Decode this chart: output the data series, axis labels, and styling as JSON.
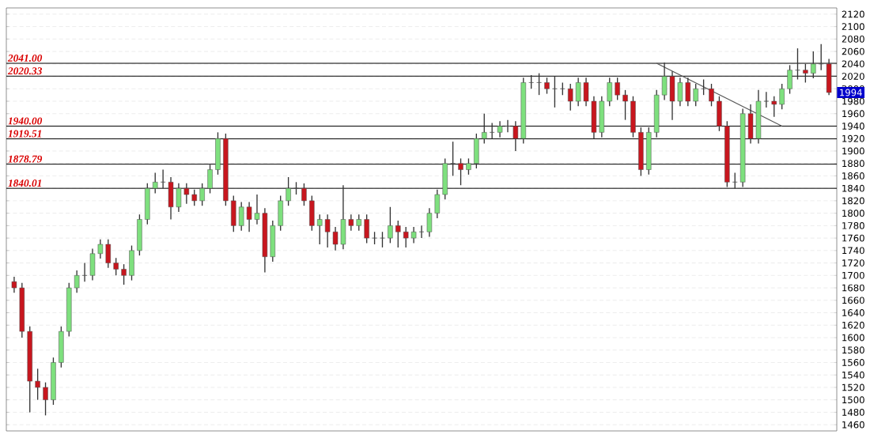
{
  "chart_data": {
    "type": "candlestick",
    "categories": [
      null,
      null,
      null,
      null,
      null,
      null,
      null,
      null,
      null,
      null,
      null,
      null,
      null,
      null,
      null,
      null,
      null,
      null,
      null,
      null,
      null,
      null,
      null,
      null,
      null,
      null,
      null,
      null,
      null,
      null,
      null,
      null,
      null,
      null,
      null,
      null,
      null,
      null,
      null,
      null,
      null,
      null,
      null,
      null,
      null,
      null,
      null,
      null,
      null,
      null,
      null,
      null,
      null,
      null,
      null,
      null,
      null,
      null,
      null,
      null,
      null,
      null,
      null,
      null,
      null,
      null,
      null,
      null,
      null,
      null,
      null,
      null,
      null,
      null,
      null,
      null,
      null,
      null,
      null,
      null,
      null,
      null,
      null,
      null,
      null,
      null,
      null,
      null,
      null,
      null,
      null,
      null,
      null,
      null,
      null,
      null,
      null,
      null,
      null,
      null,
      null,
      null,
      null,
      null,
      null
    ],
    "ohlc": [
      [
        1690,
        1698,
        1672,
        1680
      ],
      [
        1680,
        1688,
        1600,
        1610
      ],
      [
        1610,
        1618,
        1480,
        1530
      ],
      [
        1530,
        1550,
        1500,
        1520
      ],
      [
        1520,
        1528,
        1475,
        1500
      ],
      [
        1500,
        1568,
        1492,
        1560
      ],
      [
        1560,
        1618,
        1552,
        1610
      ],
      [
        1610,
        1688,
        1602,
        1680
      ],
      [
        1680,
        1708,
        1672,
        1700
      ],
      [
        1700,
        1720,
        1690,
        1700
      ],
      [
        1700,
        1743,
        1692,
        1735
      ],
      [
        1735,
        1758,
        1727,
        1750
      ],
      [
        1750,
        1758,
        1712,
        1720
      ],
      [
        1720,
        1728,
        1700,
        1710
      ],
      [
        1710,
        1718,
        1685,
        1700
      ],
      [
        1700,
        1748,
        1692,
        1740
      ],
      [
        1740,
        1798,
        1732,
        1790
      ],
      [
        1790,
        1848,
        1782,
        1840
      ],
      [
        1840,
        1865,
        1832,
        1850
      ],
      [
        1850,
        1870,
        1840,
        1850
      ],
      [
        1850,
        1858,
        1790,
        1810
      ],
      [
        1810,
        1848,
        1802,
        1840
      ],
      [
        1840,
        1848,
        1815,
        1830
      ],
      [
        1830,
        1838,
        1812,
        1820
      ],
      [
        1820,
        1848,
        1812,
        1840
      ],
      [
        1840,
        1878,
        1832,
        1870
      ],
      [
        1870,
        1930,
        1862,
        1920
      ],
      [
        1920,
        1928,
        1812,
        1820
      ],
      [
        1820,
        1828,
        1770,
        1780
      ],
      [
        1780,
        1818,
        1772,
        1810
      ],
      [
        1810,
        1818,
        1770,
        1790
      ],
      [
        1790,
        1830,
        1782,
        1800
      ],
      [
        1800,
        1808,
        1705,
        1730
      ],
      [
        1730,
        1788,
        1722,
        1780
      ],
      [
        1780,
        1828,
        1772,
        1820
      ],
      [
        1820,
        1858,
        1812,
        1840
      ],
      [
        1840,
        1850,
        1830,
        1840
      ],
      [
        1840,
        1848,
        1812,
        1820
      ],
      [
        1820,
        1828,
        1772,
        1780
      ],
      [
        1780,
        1798,
        1750,
        1790
      ],
      [
        1790,
        1798,
        1745,
        1770
      ],
      [
        1770,
        1778,
        1740,
        1750
      ],
      [
        1750,
        1845,
        1742,
        1790
      ],
      [
        1790,
        1798,
        1772,
        1780
      ],
      [
        1780,
        1798,
        1772,
        1790
      ],
      [
        1790,
        1798,
        1752,
        1760
      ],
      [
        1760,
        1770,
        1750,
        1760
      ],
      [
        1760,
        1770,
        1745,
        1760
      ],
      [
        1760,
        1810,
        1752,
        1780
      ],
      [
        1780,
        1788,
        1745,
        1770
      ],
      [
        1770,
        1778,
        1745,
        1760
      ],
      [
        1760,
        1778,
        1752,
        1770
      ],
      [
        1770,
        1780,
        1760,
        1770
      ],
      [
        1770,
        1808,
        1762,
        1800
      ],
      [
        1800,
        1838,
        1792,
        1830
      ],
      [
        1830,
        1888,
        1822,
        1880
      ],
      [
        1880,
        1915,
        1860,
        1880
      ],
      [
        1880,
        1888,
        1845,
        1870
      ],
      [
        1870,
        1888,
        1862,
        1880
      ],
      [
        1880,
        1928,
        1872,
        1920
      ],
      [
        1920,
        1960,
        1912,
        1930
      ],
      [
        1930,
        1945,
        1920,
        1930
      ],
      [
        1930,
        1948,
        1922,
        1940
      ],
      [
        1940,
        1950,
        1930,
        1940
      ],
      [
        1940,
        1948,
        1900,
        1920
      ],
      [
        1920,
        2018,
        1912,
        2010
      ],
      [
        2010,
        2022,
        2000,
        2010
      ],
      [
        2010,
        2025,
        1990,
        2010
      ],
      [
        2010,
        2018,
        1992,
        2000
      ],
      [
        2000,
        2020,
        1970,
        2000
      ],
      [
        2000,
        2010,
        1990,
        2000
      ],
      [
        2000,
        2008,
        1965,
        1980
      ],
      [
        1980,
        2018,
        1972,
        2010
      ],
      [
        2010,
        2018,
        1972,
        1980
      ],
      [
        1980,
        1988,
        1920,
        1930
      ],
      [
        1930,
        1988,
        1922,
        1980
      ],
      [
        1980,
        2018,
        1972,
        2010
      ],
      [
        2010,
        2018,
        1982,
        1990
      ],
      [
        1990,
        1998,
        1950,
        1980
      ],
      [
        1980,
        1988,
        1922,
        1930
      ],
      [
        1930,
        1938,
        1860,
        1870
      ],
      [
        1870,
        1938,
        1862,
        1930
      ],
      [
        1930,
        1998,
        1922,
        1990
      ],
      [
        1990,
        2042,
        1982,
        2020
      ],
      [
        2020,
        2028,
        1950,
        1980
      ],
      [
        1980,
        2018,
        1972,
        2010
      ],
      [
        2010,
        2018,
        1972,
        1980
      ],
      [
        1980,
        2008,
        1972,
        2000
      ],
      [
        2000,
        2015,
        1990,
        2000
      ],
      [
        2000,
        2008,
        1972,
        1980
      ],
      [
        1980,
        1988,
        1932,
        1940
      ],
      [
        1940,
        1948,
        1842,
        1850
      ],
      [
        1850,
        1865,
        1840,
        1850
      ],
      [
        1850,
        1968,
        1842,
        1960
      ],
      [
        1960,
        1975,
        1912,
        1920
      ],
      [
        1920,
        1998,
        1912,
        1980
      ],
      [
        1980,
        1995,
        1970,
        1980
      ],
      [
        1980,
        1988,
        1955,
        1975
      ],
      [
        1975,
        2008,
        1967,
        2000
      ],
      [
        2000,
        2038,
        1992,
        2030
      ],
      [
        2030,
        2065,
        2015,
        2030
      ],
      [
        2030,
        2040,
        2010,
        2025
      ],
      [
        2025,
        2060,
        2017,
        2040
      ],
      [
        2040,
        2072,
        2030,
        2040
      ],
      [
        2040,
        2048,
        1990,
        1994
      ]
    ],
    "series": [
      {
        "type": "line",
        "color": "#555555",
        "values": [
          null,
          null,
          null,
          null,
          null,
          null,
          null,
          null,
          null,
          null,
          null,
          null,
          null,
          null,
          null,
          null,
          null,
          null,
          null,
          null,
          null,
          null,
          null,
          null,
          null,
          null,
          null,
          null,
          null,
          null,
          null,
          null,
          null,
          null,
          null,
          null,
          null,
          null,
          null,
          null,
          null,
          null,
          null,
          null,
          null,
          null,
          null,
          null,
          null,
          null,
          null,
          null,
          null,
          null,
          null,
          null,
          null,
          null,
          null,
          null,
          null,
          null,
          null,
          null,
          null,
          null,
          null,
          null,
          null,
          null,
          null,
          null,
          null,
          null,
          null,
          null,
          null,
          null,
          null,
          null,
          null,
          null,
          2041,
          null,
          null,
          null,
          null,
          null,
          null,
          null,
          null,
          null,
          null,
          null,
          null,
          null,
          null,
          null,
          1940,
          null,
          null,
          null,
          null,
          null,
          null
        ]
      }
    ],
    "ylim": [
      1450,
      2130
    ],
    "yticks": [
      1460,
      1480,
      1500,
      1520,
      1540,
      1560,
      1580,
      1600,
      1620,
      1640,
      1660,
      1680,
      1700,
      1720,
      1740,
      1760,
      1780,
      1800,
      1820,
      1840,
      1860,
      1880,
      1900,
      1920,
      1940,
      1960,
      1980,
      2000,
      2020,
      2040,
      2060,
      2080,
      2100,
      2120
    ],
    "tick_labels": "y",
    "grid": "y",
    "ref_lines": [
      {
        "axis": "y",
        "value": 2041.0,
        "label": "2041.00"
      },
      {
        "axis": "y",
        "value": 2020.33,
        "label": "2020.33"
      },
      {
        "axis": "y",
        "value": 1940.0,
        "label": "1940.00"
      },
      {
        "axis": "y",
        "value": 1919.51,
        "label": "1919.51"
      },
      {
        "axis": "y",
        "value": 1878.79,
        "label": "1878.79"
      },
      {
        "axis": "y",
        "value": 1840.01,
        "label": "1840.01"
      }
    ],
    "annotations": [
      {
        "text": "1994",
        "y": 1994
      }
    ]
  }
}
